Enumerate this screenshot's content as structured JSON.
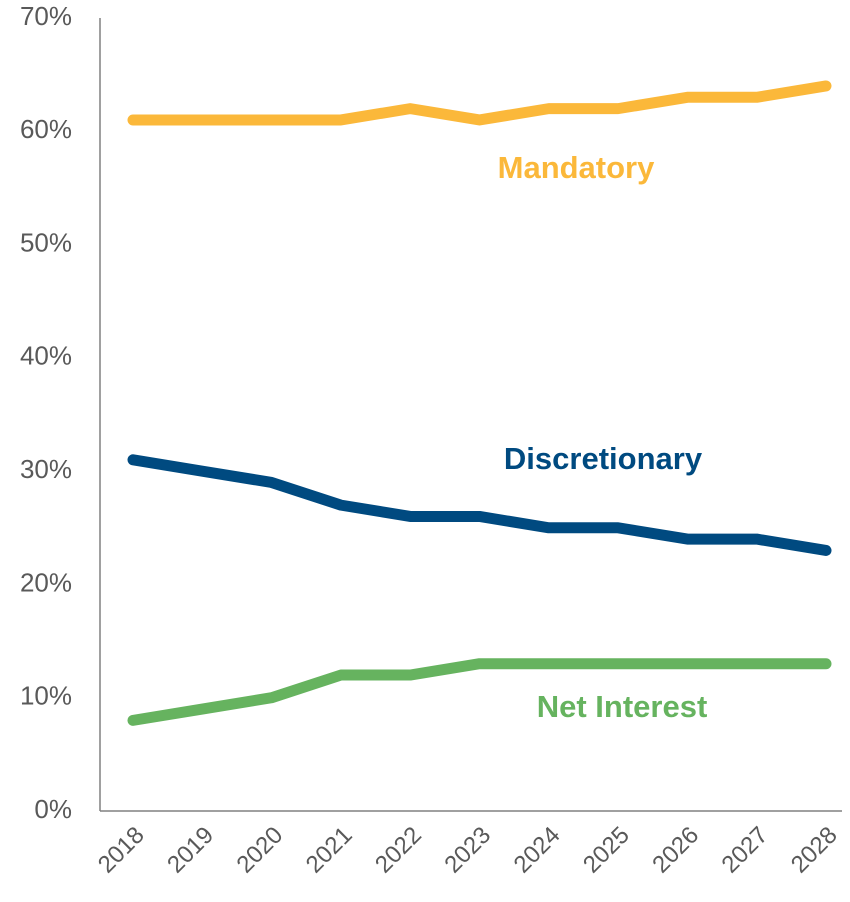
{
  "chart_data": {
    "type": "line",
    "categories": [
      "2018",
      "2019",
      "2020",
      "2021",
      "2022",
      "2023",
      "2024",
      "2025",
      "2026",
      "2027",
      "2028"
    ],
    "series": [
      {
        "name": "Mandatory",
        "color": "#fbb83a",
        "values": [
          61,
          61,
          61,
          61,
          62,
          61,
          62,
          62,
          63,
          63,
          64
        ]
      },
      {
        "name": "Discretionary",
        "color": "#004a80",
        "values": [
          31,
          30,
          29,
          27,
          26,
          26,
          25,
          25,
          24,
          24,
          23
        ]
      },
      {
        "name": "Net Interest",
        "color": "#66b35f",
        "values": [
          8,
          9,
          10,
          12,
          12,
          13,
          13,
          13,
          13,
          13,
          13
        ]
      }
    ],
    "ylim": [
      0,
      70
    ],
    "yticks": [
      {
        "value": 0,
        "label": "0%"
      },
      {
        "value": 10,
        "label": "10%"
      },
      {
        "value": 20,
        "label": "20%"
      },
      {
        "value": 30,
        "label": "30%"
      },
      {
        "value": 40,
        "label": "40%"
      },
      {
        "value": 50,
        "label": "50%"
      },
      {
        "value": 60,
        "label": "60%"
      },
      {
        "value": 70,
        "label": "70%"
      }
    ],
    "grid": false
  }
}
